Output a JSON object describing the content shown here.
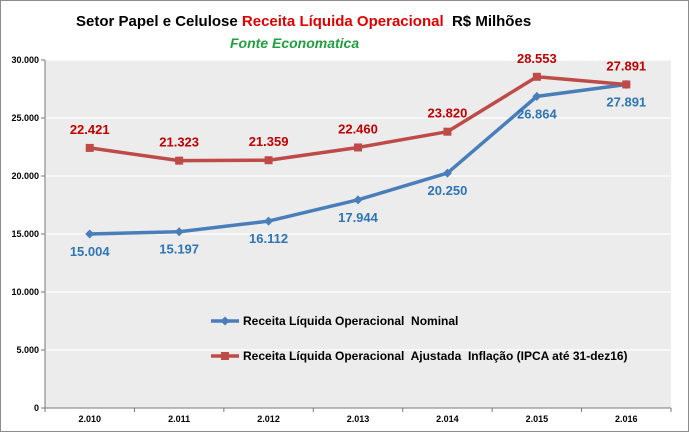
{
  "title": {
    "part1": "Setor Papel e Celulose ",
    "part2": "Receita Líquida Operacional",
    "part3": "  R$ Milhões",
    "subtitle": "Fonte Economatica"
  },
  "colors": {
    "title_highlight": "#e00000",
    "subtitle": "#20a040",
    "nominal": "#4a7ebb",
    "adjusted": "#be4b48",
    "nominal_label": "#2e75b6",
    "adjusted_label": "#c00000",
    "plot_bg": "#ececec",
    "grid": "#ffffff"
  },
  "chart_data": {
    "type": "line",
    "title": "Setor Papel e Celulose Receita Líquida Operacional  R$ Milhões",
    "subtitle": "Fonte Economatica",
    "categories": [
      "2.010",
      "2.011",
      "2.012",
      "2.013",
      "2.014",
      "2.015",
      "2.016"
    ],
    "y_ticks": [
      "0",
      "5.000",
      "10.000",
      "15.000",
      "20.000",
      "25.000",
      "30.000"
    ],
    "ylim": [
      0,
      30000
    ],
    "grid": true,
    "legend_position": "center-right",
    "series": [
      {
        "name": "Receita Líquida Operacional  Nominal",
        "values": [
          15004,
          15197,
          16112,
          17944,
          20250,
          26864,
          27891
        ],
        "labels": [
          "15.004",
          "15.197",
          "16.112",
          "17.944",
          "20.250",
          "26.864",
          "27.891"
        ],
        "marker": "diamond"
      },
      {
        "name": "Receita Líquida Operacional  Ajustada  Inflação (IPCA até 31-dez16)",
        "values": [
          22421,
          21323,
          21359,
          22460,
          23820,
          28553,
          27891
        ],
        "labels": [
          "22.421",
          "21.323",
          "21.359",
          "22.460",
          "23.820",
          "28.553",
          "27.891"
        ],
        "marker": "square"
      }
    ]
  }
}
